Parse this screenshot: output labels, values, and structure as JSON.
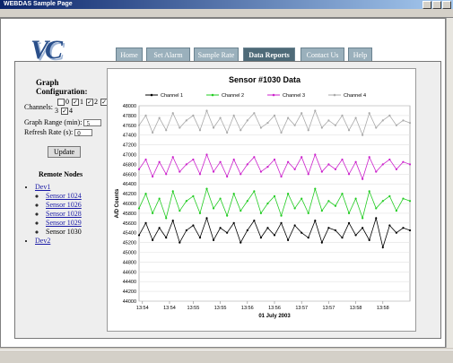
{
  "window": {
    "title": "WEBDAS Sample Page"
  },
  "logo": "VC",
  "nav": {
    "items": [
      "Home",
      "Set Alarm",
      "Sample Rate",
      "Data Reports",
      "Contact Us",
      "Help"
    ],
    "active_index": 3
  },
  "sidebar": {
    "heading": "Graph Configuration:",
    "channels_label": "Channels:",
    "channels": [
      {
        "label": "0",
        "checked": false
      },
      {
        "label": "1",
        "checked": true
      },
      {
        "label": "2",
        "checked": true
      },
      {
        "label": "3",
        "checked": true
      },
      {
        "label": "4",
        "checked": true
      }
    ],
    "range_label": "Graph Range (min):",
    "range_value": "5",
    "refresh_label": "Refresh Rate (s):",
    "refresh_value": "0",
    "button": "Update",
    "nodes_heading": "Remote Nodes",
    "nodes": [
      {
        "label": "Dev1",
        "children": [
          "Sensor 1024",
          "Sensor 1026",
          "Sensor 1028",
          "Sensor 1029",
          "Sensor 1030"
        ],
        "active_child": 4
      },
      {
        "label": "Dev2"
      }
    ]
  },
  "chart_data": {
    "type": "line",
    "title": "Sensor #1030 Data",
    "x_label": "01 July 2003",
    "y_label": "A/D Counts",
    "x": [
      0,
      1,
      2,
      3,
      4,
      5,
      6,
      7,
      8,
      9,
      10,
      11,
      12,
      13,
      14,
      15,
      16,
      17,
      18,
      19,
      20,
      21,
      22,
      23,
      24,
      25,
      26,
      27,
      28,
      29,
      30,
      31,
      32,
      33,
      34,
      35,
      36,
      37,
      38,
      39,
      40
    ],
    "xlim": [
      0,
      40
    ],
    "xticks": [
      {
        "value": 0.5,
        "label": "13:54"
      },
      {
        "value": 4.5,
        "label": "13:54"
      },
      {
        "value": 8,
        "label": "13:55"
      },
      {
        "value": 12,
        "label": "13:55"
      },
      {
        "value": 16,
        "label": "13:56"
      },
      {
        "value": 20,
        "label": "13:56"
      },
      {
        "value": 24,
        "label": "13:57"
      },
      {
        "value": 28,
        "label": "13:57"
      },
      {
        "value": 32,
        "label": "13:58"
      },
      {
        "value": 36,
        "label": "13:58"
      }
    ],
    "ylim": [
      44000,
      48000
    ],
    "yticks": [
      44000,
      44200,
      44400,
      44600,
      44800,
      45000,
      45200,
      45400,
      45600,
      45800,
      46000,
      46200,
      46400,
      46600,
      46800,
      47000,
      47200,
      47400,
      47600,
      47800,
      48000
    ],
    "grid": true,
    "markers": true,
    "series": [
      {
        "name": "Channel 1",
        "color": "#000000",
        "values": [
          45350,
          45600,
          45250,
          45500,
          45300,
          45650,
          45200,
          45450,
          45550,
          45300,
          45700,
          45250,
          45500,
          45400,
          45600,
          45200,
          45450,
          45650,
          45300,
          45500,
          45350,
          45600,
          45250,
          45550,
          45400,
          45300,
          45650,
          45200,
          45500,
          45450,
          45300,
          45600,
          45350,
          45500,
          45250,
          45700,
          45100,
          45550,
          45400,
          45500,
          45450
        ]
      },
      {
        "name": "Channel 2",
        "color": "#22cc22",
        "values": [
          45900,
          46200,
          45800,
          46100,
          45700,
          46250,
          45850,
          46050,
          46150,
          45800,
          46300,
          45900,
          46100,
          45750,
          46200,
          45850,
          46050,
          46250,
          45800,
          46000,
          46150,
          45750,
          46200,
          45900,
          46100,
          45800,
          46300,
          45850,
          46050,
          45950,
          46200,
          45800,
          46100,
          45700,
          46250,
          45900,
          46050,
          46150,
          45850,
          46100,
          46050
        ]
      },
      {
        "name": "Channel 3",
        "color": "#cc22cc",
        "values": [
          46700,
          46900,
          46550,
          46850,
          46600,
          46950,
          46650,
          46800,
          46900,
          46600,
          47000,
          46650,
          46850,
          46550,
          46900,
          46600,
          46800,
          46950,
          46650,
          46750,
          46900,
          46550,
          46850,
          46700,
          46950,
          46600,
          47000,
          46650,
          46800,
          46700,
          46900,
          46600,
          46850,
          46500,
          46950,
          46650,
          46800,
          46900,
          46700,
          46850,
          46800
        ]
      },
      {
        "name": "Channel 4",
        "color": "#aaaaaa",
        "values": [
          47600,
          47800,
          47450,
          47750,
          47500,
          47850,
          47550,
          47700,
          47800,
          47500,
          47900,
          47550,
          47750,
          47450,
          47800,
          47500,
          47700,
          47850,
          47550,
          47650,
          47800,
          47450,
          47750,
          47600,
          47850,
          47500,
          47900,
          47550,
          47700,
          47600,
          47800,
          47500,
          47750,
          47400,
          47850,
          47550,
          47700,
          47800,
          47600,
          47700,
          47650
        ]
      }
    ]
  }
}
